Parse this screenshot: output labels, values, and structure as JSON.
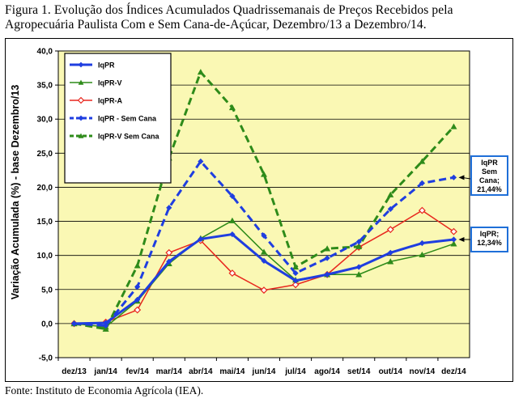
{
  "caption": "Figura 1. Evolução dos Índices Acumulados Quadrissemanais de Preços Recebidos pela Agropecuária Paulista Com e Sem Cana-de-Açúcar, Dezembro/13 a Dezembro/14.",
  "source": "Fonte: Instituto de Economia Agrícola (IEA).",
  "chart_data": {
    "type": "line",
    "ylabel": "Variação Acumulada (%) - base Dezembro/13",
    "xlabel": "",
    "ylim": [
      -5,
      40
    ],
    "ytick_step": 5,
    "ytick_labels": [
      "-5,0",
      "0,0",
      "5,0",
      "10,0",
      "15,0",
      "20,0",
      "25,0",
      "30,0",
      "35,0",
      "40,0"
    ],
    "grid": "horizontal",
    "background_color": "#faf8b4",
    "legend_position": "top-left",
    "categories": [
      "dez/13",
      "jan/14",
      "fev/14",
      "mar/14",
      "abr/14",
      "mai/14",
      "jun/14",
      "jul/14",
      "ago/14",
      "set/14",
      "out/14",
      "nov/14",
      "dez/14"
    ],
    "series": [
      {
        "name": "IqPR",
        "color": "#1f3ee0",
        "style": "solid",
        "marker": "diamond",
        "width": 3,
        "values": [
          0.0,
          0.1,
          3.5,
          9.1,
          12.4,
          13.1,
          9.2,
          6.3,
          7.2,
          8.3,
          10.4,
          11.8,
          12.34
        ]
      },
      {
        "name": "IqPR-V",
        "color": "#2e8b1a",
        "style": "solid",
        "marker": "triangle",
        "width": 1.5,
        "values": [
          0.0,
          -0.5,
          3.3,
          8.8,
          12.5,
          15.1,
          10.5,
          6.4,
          7.2,
          7.2,
          9.1,
          10.1,
          11.7
        ]
      },
      {
        "name": "IqPR-A",
        "color": "#e8271e",
        "style": "solid",
        "marker": "diamond-open",
        "width": 1.5,
        "values": [
          0.0,
          0.2,
          2.0,
          10.4,
          12.2,
          7.4,
          4.9,
          5.7,
          7.2,
          11.2,
          13.8,
          16.6,
          13.5
        ]
      },
      {
        "name": "IqPR - Sem Cana",
        "color": "#1f3ee0",
        "style": "dashed",
        "marker": "diamond",
        "width": 3,
        "values": [
          0.0,
          -0.3,
          5.4,
          17.0,
          23.8,
          18.7,
          12.9,
          7.4,
          9.6,
          12.0,
          16.8,
          20.6,
          21.44
        ]
      },
      {
        "name": "IqPR-V Sem Cana",
        "color": "#2e8b1a",
        "style": "dashed",
        "marker": "triangle",
        "width": 3,
        "values": [
          0.0,
          -0.8,
          8.5,
          24.3,
          36.9,
          31.7,
          21.9,
          8.3,
          11.0,
          11.3,
          18.9,
          23.8,
          28.9
        ]
      }
    ],
    "annotations": [
      {
        "lines": [
          "IqPR",
          "Sem",
          "Cana;",
          "21,44%"
        ],
        "series": "IqPR - Sem Cana",
        "box_color": "#1f6fd8"
      },
      {
        "lines": [
          "IqPR;",
          "12,34%"
        ],
        "series": "IqPR",
        "box_color": "#1f6fd8"
      }
    ]
  }
}
